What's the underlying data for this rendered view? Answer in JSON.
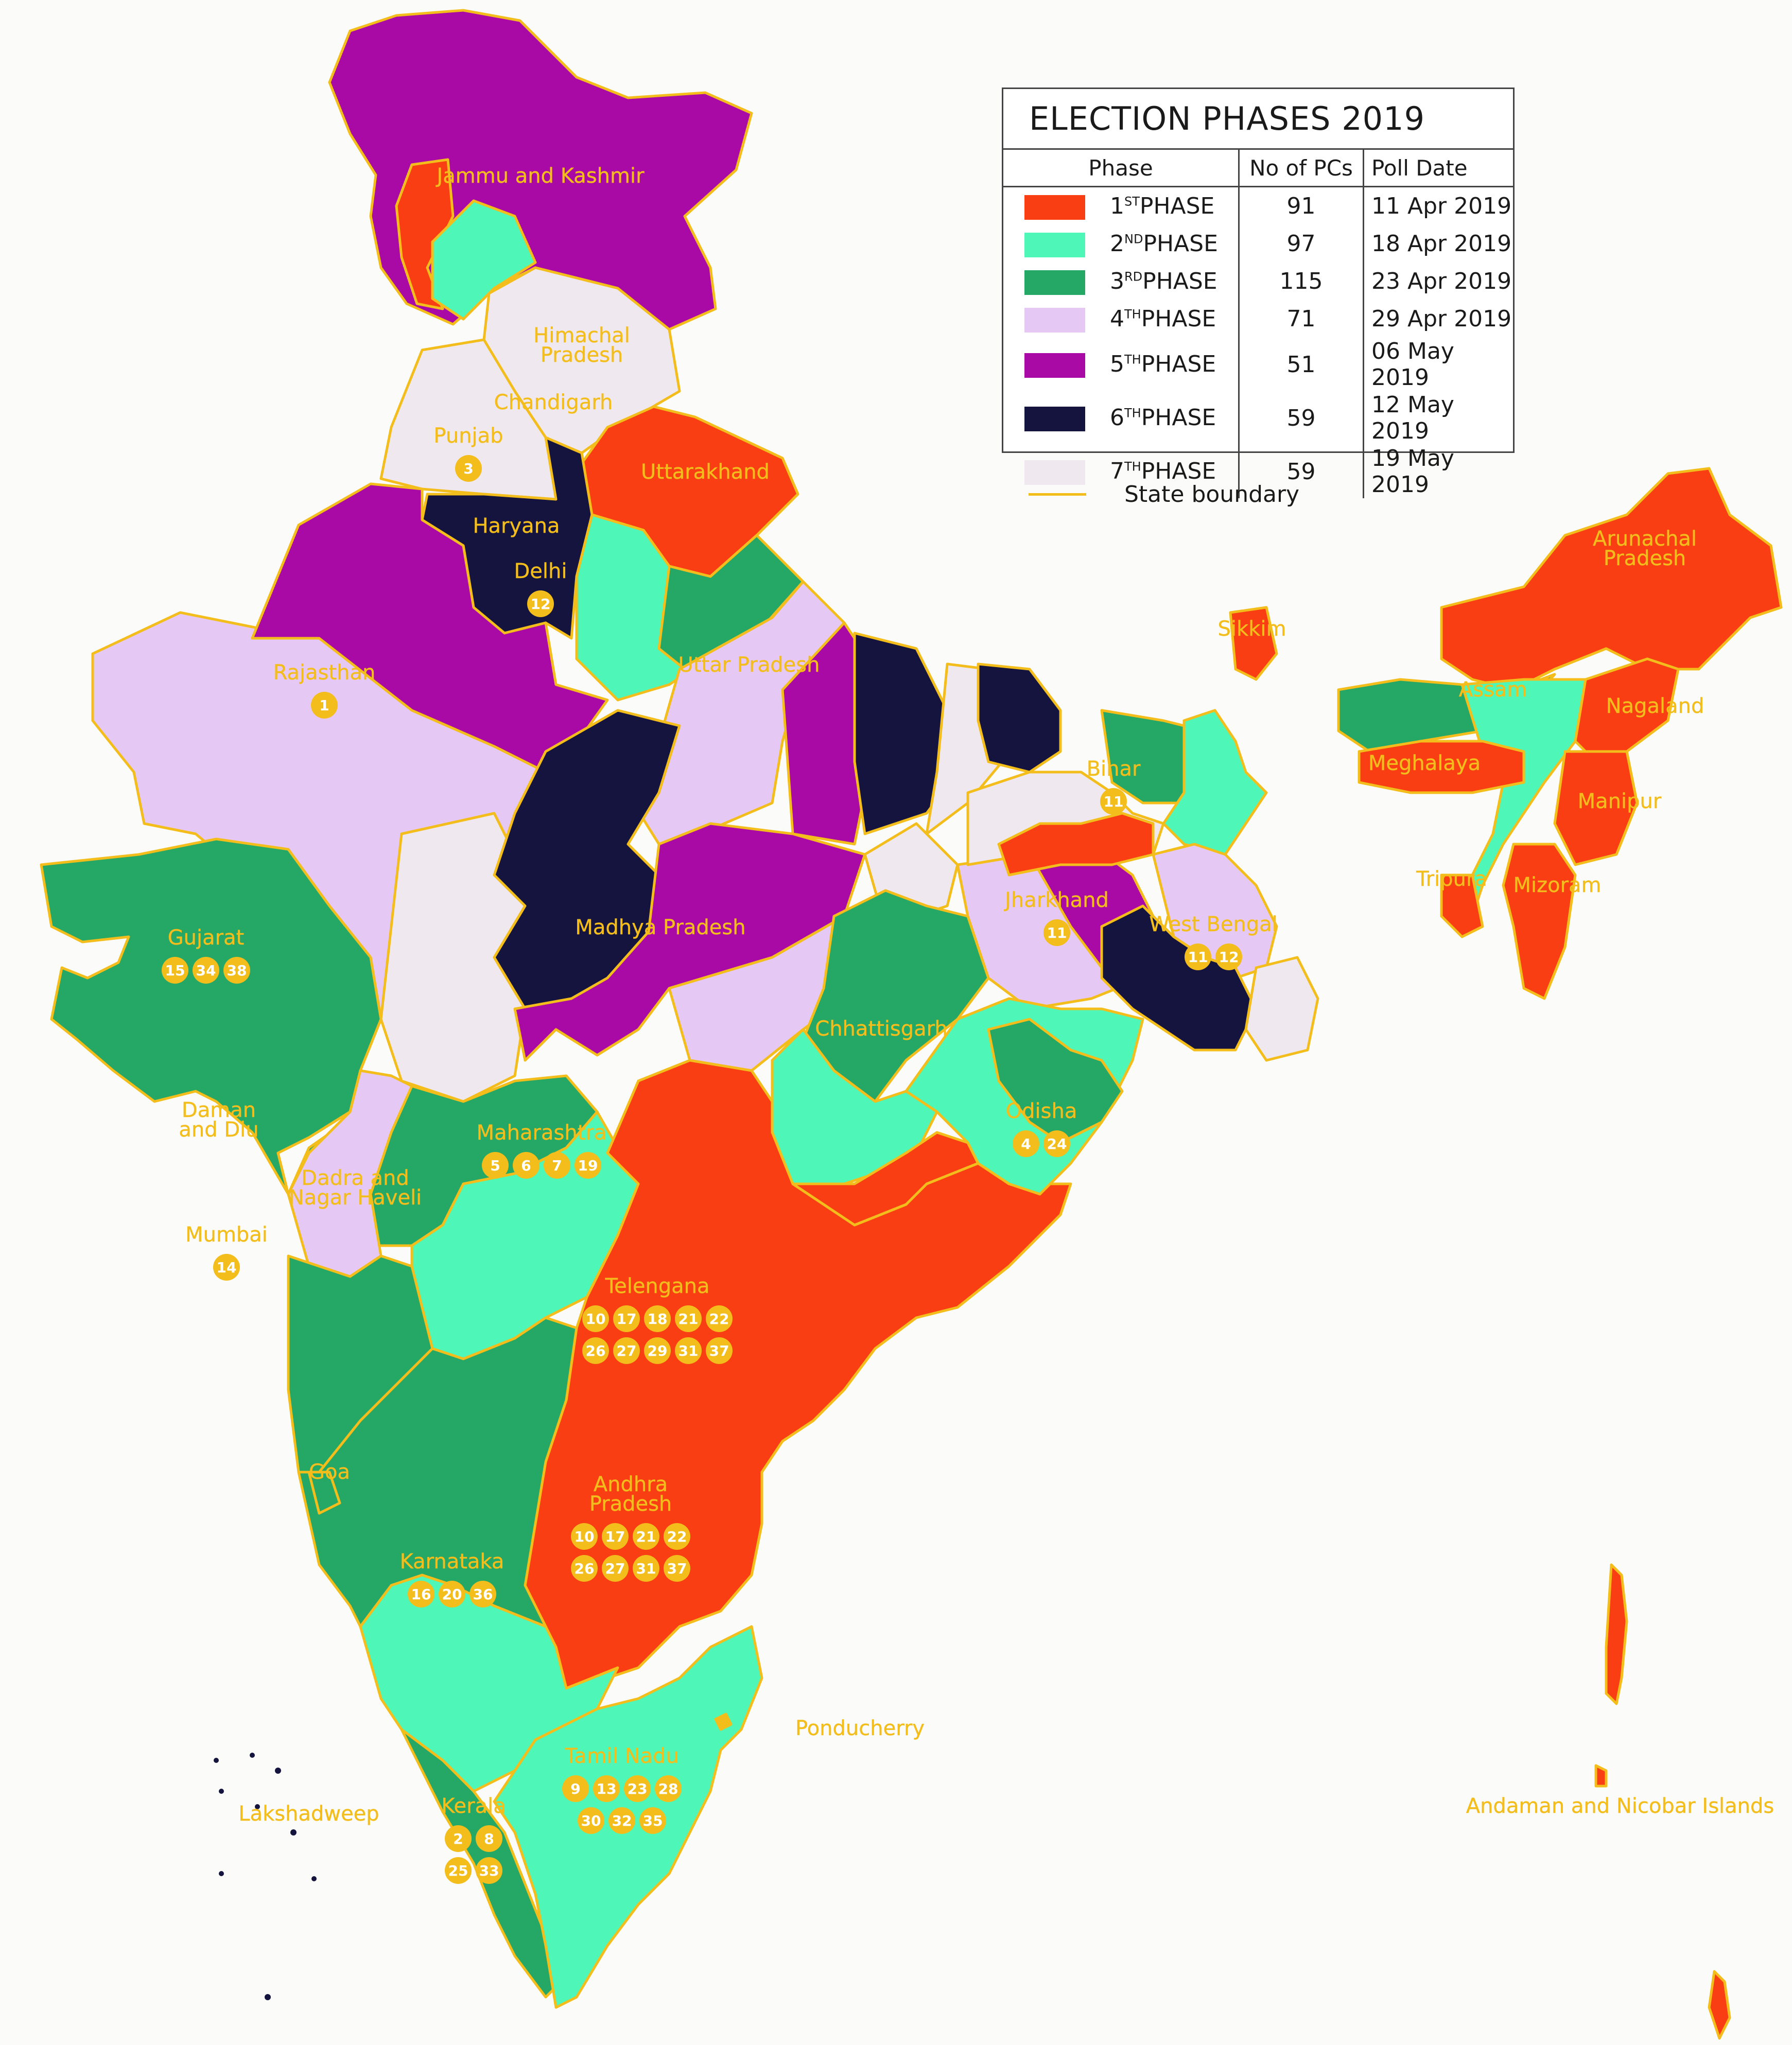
{
  "legend": {
    "title": "ELECTION PHASES 2019",
    "headers": {
      "phase": "Phase",
      "pcs": "No of PCs",
      "date": "Poll Date"
    },
    "phases": [
      {
        "num": "1",
        "sup": "ST",
        "word": "PHASE",
        "pcs": "91",
        "date": "11 Apr 2019",
        "color": "#f93e14"
      },
      {
        "num": "2",
        "sup": "ND",
        "word": "PHASE",
        "pcs": "97",
        "date": "18 Apr 2019",
        "color": "#4ef7b8"
      },
      {
        "num": "3",
        "sup": "RD",
        "word": "PHASE",
        "pcs": "115",
        "date": "23 Apr 2019",
        "color": "#25a765"
      },
      {
        "num": "4",
        "sup": "TH",
        "word": "PHASE",
        "pcs": "71",
        "date": "29 Apr 2019",
        "color": "#e5c9f4"
      },
      {
        "num": "5",
        "sup": "TH",
        "word": "PHASE",
        "pcs": "51",
        "date": "06 May 2019",
        "color": "#a90aa6"
      },
      {
        "num": "6",
        "sup": "TH",
        "word": "PHASE",
        "pcs": "59",
        "date": "12 May 2019",
        "color": "#14143e"
      },
      {
        "num": "7",
        "sup": "TH",
        "word": "PHASE",
        "pcs": "59",
        "date": "19 May 2019",
        "color": "#efe8ef"
      }
    ],
    "boundary_label": "State boundary",
    "boundary_color": "#f3bd1c"
  },
  "states": [
    {
      "id": "jk",
      "lines": [
        "Jammu and Kashmir"
      ],
      "badges": []
    },
    {
      "id": "hp",
      "lines": [
        "Himachal",
        "Pradesh"
      ],
      "badges": []
    },
    {
      "id": "ch",
      "lines": [
        "Chandigarh"
      ],
      "badges": []
    },
    {
      "id": "pb",
      "lines": [
        "Punjab"
      ],
      "badges": [
        "3"
      ]
    },
    {
      "id": "uk",
      "lines": [
        "Uttarakhand"
      ],
      "badges": []
    },
    {
      "id": "hr",
      "lines": [
        "Haryana"
      ],
      "badges": []
    },
    {
      "id": "dl",
      "lines": [
        "Delhi"
      ],
      "badges": [
        "12"
      ]
    },
    {
      "id": "rj",
      "lines": [
        "Rajasthan"
      ],
      "badges": [
        "1"
      ]
    },
    {
      "id": "up",
      "lines": [
        "Uttar Pradesh"
      ],
      "badges": []
    },
    {
      "id": "ar",
      "lines": [
        "Arunachal",
        "Pradesh"
      ],
      "badges": []
    },
    {
      "id": "sk",
      "lines": [
        "Sikkim"
      ],
      "badges": []
    },
    {
      "id": "as",
      "lines": [
        "Assam"
      ],
      "badges": []
    },
    {
      "id": "nl",
      "lines": [
        "Nagaland"
      ],
      "badges": []
    },
    {
      "id": "ml",
      "lines": [
        "Meghalaya"
      ],
      "badges": []
    },
    {
      "id": "br",
      "lines": [
        "Bihar"
      ],
      "badges": [
        "11"
      ]
    },
    {
      "id": "mn",
      "lines": [
        "Manipur"
      ],
      "badges": []
    },
    {
      "id": "tr",
      "lines": [
        "Tripura"
      ],
      "badges": []
    },
    {
      "id": "mz",
      "lines": [
        "Mizoram"
      ],
      "badges": []
    },
    {
      "id": "jh",
      "lines": [
        "Jharkhand"
      ],
      "badges": [
        "11"
      ]
    },
    {
      "id": "wb",
      "lines": [
        "West Bengal"
      ],
      "badges": [
        "11",
        "12"
      ]
    },
    {
      "id": "gj",
      "lines": [
        "Gujarat"
      ],
      "badges": [
        "15",
        "34",
        "38"
      ]
    },
    {
      "id": "mp",
      "lines": [
        "Madhya Pradesh"
      ],
      "badges": []
    },
    {
      "id": "cg",
      "lines": [
        "Chhattisgarh"
      ],
      "badges": []
    },
    {
      "id": "od",
      "lines": [
        "Odisha"
      ],
      "badges": [
        "4",
        "24"
      ]
    },
    {
      "id": "dd",
      "lines": [
        "Daman",
        "and Diu"
      ],
      "badges": []
    },
    {
      "id": "mh",
      "lines": [
        "Maharashtra"
      ],
      "badges": [
        "5",
        "6",
        "7",
        "19"
      ]
    },
    {
      "id": "dnh",
      "lines": [
        "Dadra and",
        "Nagar Haveli"
      ],
      "badges": []
    },
    {
      "id": "mb",
      "lines": [
        "Mumbai"
      ],
      "badges": [
        "14"
      ]
    },
    {
      "id": "tg",
      "lines": [
        "Telengana"
      ],
      "badges": [
        "10",
        "17",
        "18",
        "21",
        "22",
        "26",
        "27",
        "29",
        "31",
        "37"
      ]
    },
    {
      "id": "ga",
      "lines": [
        "Goa"
      ],
      "badges": []
    },
    {
      "id": "ap",
      "lines": [
        "Andhra",
        "Pradesh"
      ],
      "badges": [
        "10",
        "17",
        "21",
        "22",
        "26",
        "27",
        "31",
        "37"
      ]
    },
    {
      "id": "ka",
      "lines": [
        "Karnataka"
      ],
      "badges": [
        "16",
        "20",
        "36"
      ]
    },
    {
      "id": "py",
      "lines": [
        "Ponducherry"
      ],
      "badges": []
    },
    {
      "id": "tn",
      "lines": [
        "Tamil Nadu"
      ],
      "badges": [
        "9",
        "13",
        "23",
        "28",
        "30",
        "32",
        "35"
      ]
    },
    {
      "id": "kl",
      "lines": [
        "Kerala"
      ],
      "badges": [
        "2",
        "8",
        "25",
        "33"
      ]
    },
    {
      "id": "ld",
      "lines": [
        "Lakshadweep"
      ],
      "badges": []
    },
    {
      "id": "an",
      "lines": [
        "Andaman and Nicobar Islands"
      ],
      "badges": []
    }
  ]
}
